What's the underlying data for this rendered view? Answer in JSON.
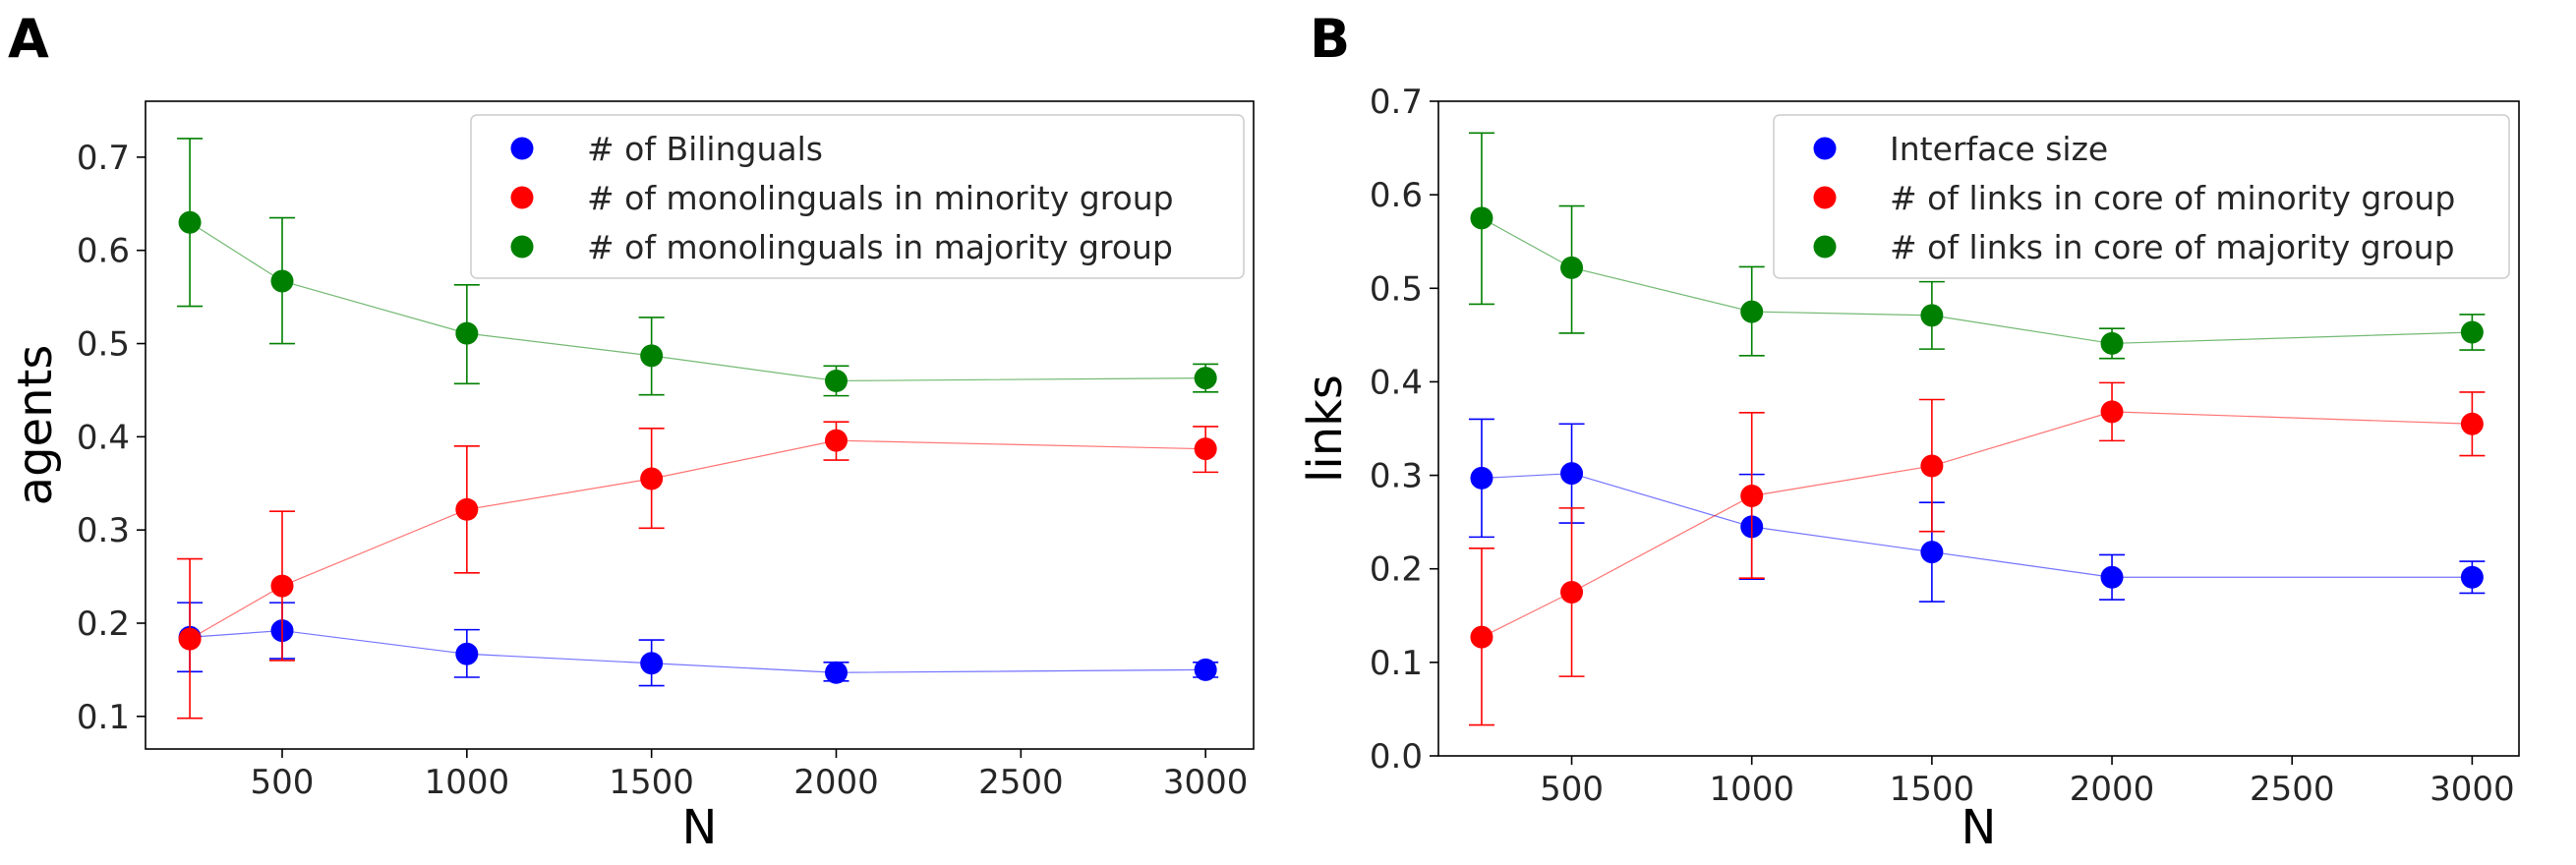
{
  "chart_data": [
    {
      "panel": "A",
      "type": "scatter",
      "xlabel": "N",
      "ylabel": "agents",
      "xlim": [
        130,
        3130
      ],
      "ylim": [
        0.065,
        0.76
      ],
      "xticks": [
        500,
        1000,
        1500,
        2000,
        2500,
        3000
      ],
      "yticks": [
        0.1,
        0.2,
        0.3,
        0.4,
        0.5,
        0.6,
        0.7
      ],
      "legend_position": "top-right",
      "x": [
        250,
        500,
        1000,
        1500,
        2000,
        3000
      ],
      "series": [
        {
          "name": "# of Bilinguals",
          "color": "#0000ff",
          "values": [
            0.185,
            0.192,
            0.167,
            0.157,
            0.147,
            0.15
          ],
          "err_low": [
            0.148,
            0.162,
            0.142,
            0.133,
            0.138,
            0.142
          ],
          "err_high": [
            0.222,
            0.222,
            0.193,
            0.182,
            0.158,
            0.158
          ]
        },
        {
          "name": "# of monolinguals in minority group",
          "color": "#ff0000",
          "values": [
            0.183,
            0.24,
            0.322,
            0.355,
            0.396,
            0.387
          ],
          "err_low": [
            0.098,
            0.16,
            0.254,
            0.302,
            0.375,
            0.362
          ],
          "err_high": [
            0.269,
            0.32,
            0.39,
            0.409,
            0.416,
            0.411
          ]
        },
        {
          "name": "# of monolinguals in majority group",
          "color": "#008000",
          "values": [
            0.63,
            0.567,
            0.511,
            0.487,
            0.46,
            0.463
          ],
          "err_low": [
            0.54,
            0.5,
            0.457,
            0.445,
            0.444,
            0.448
          ],
          "err_high": [
            0.72,
            0.635,
            0.563,
            0.528,
            0.476,
            0.478
          ]
        }
      ]
    },
    {
      "panel": "B",
      "type": "scatter",
      "xlabel": "N",
      "ylabel": "links",
      "xlim": [
        130,
        3130
      ],
      "ylim": [
        0.0,
        0.7
      ],
      "xticks": [
        500,
        1000,
        1500,
        2000,
        2500,
        3000
      ],
      "yticks": [
        0.0,
        0.1,
        0.2,
        0.3,
        0.4,
        0.5,
        0.6,
        0.7
      ],
      "legend_position": "top-right",
      "x": [
        250,
        500,
        1000,
        1500,
        2000,
        3000
      ],
      "series": [
        {
          "name": "Interface size",
          "color": "#0000ff",
          "values": [
            0.297,
            0.302,
            0.245,
            0.218,
            0.191,
            0.191
          ],
          "err_low": [
            0.234,
            0.249,
            0.189,
            0.165,
            0.167,
            0.174
          ],
          "err_high": [
            0.36,
            0.355,
            0.301,
            0.271,
            0.215,
            0.208
          ]
        },
        {
          "name": "# of links in core of minority group",
          "color": "#ff0000",
          "values": [
            0.127,
            0.175,
            0.278,
            0.31,
            0.368,
            0.355
          ],
          "err_low": [
            0.033,
            0.085,
            0.19,
            0.24,
            0.337,
            0.321
          ],
          "err_high": [
            0.222,
            0.265,
            0.367,
            0.381,
            0.399,
            0.389
          ]
        },
        {
          "name": "# of links in core of majority group",
          "color": "#008000",
          "values": [
            0.575,
            0.522,
            0.475,
            0.471,
            0.441,
            0.453
          ],
          "err_low": [
            0.483,
            0.452,
            0.428,
            0.435,
            0.425,
            0.434
          ],
          "err_high": [
            0.666,
            0.588,
            0.523,
            0.507,
            0.457,
            0.472
          ]
        }
      ]
    }
  ]
}
